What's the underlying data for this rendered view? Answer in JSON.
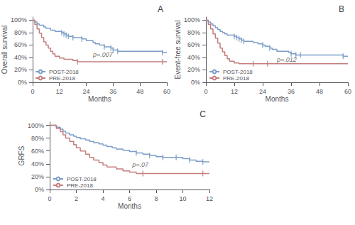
{
  "chart_data": [
    {
      "type": "step",
      "title": "A",
      "xlabel": "Months",
      "ylabel": "Overall survival",
      "xlim": [
        0,
        60
      ],
      "xticks": [
        0,
        12,
        24,
        36,
        48,
        60
      ],
      "ylim": [
        0,
        1.05
      ],
      "yticks": [
        {
          "value": 0.0,
          "label": "0%"
        },
        {
          "value": 0.2,
          "label": "20%"
        },
        {
          "value": 0.4,
          "label": "40%"
        },
        {
          "value": 0.6,
          "label": "60%"
        },
        {
          "value": 0.8,
          "label": "80%"
        },
        {
          "value": 1.0,
          "label": "100%"
        }
      ],
      "grid": false,
      "legend": "lower left",
      "annotations": [
        {
          "text": "p=.007",
          "x": 27,
          "y": 0.44
        }
      ],
      "series": [
        {
          "name": "POST-2018",
          "color": "#7B9EC8",
          "x": [
            0,
            1,
            2,
            3,
            5,
            6,
            8,
            10,
            13,
            14,
            15,
            16,
            18,
            22,
            24,
            27,
            28,
            30,
            32,
            35,
            36,
            38,
            40,
            58,
            60
          ],
          "values": [
            1.0,
            0.97,
            0.94,
            0.92,
            0.89,
            0.87,
            0.84,
            0.82,
            0.8,
            0.78,
            0.76,
            0.74,
            0.72,
            0.7,
            0.67,
            0.64,
            0.62,
            0.6,
            0.57,
            0.55,
            0.52,
            0.5,
            0.5,
            0.48,
            0.48
          ],
          "censor_x": [
            13,
            14,
            15,
            16,
            18,
            22,
            32,
            35,
            36,
            38,
            58
          ],
          "censor_y": [
            0.8,
            0.78,
            0.76,
            0.74,
            0.72,
            0.7,
            0.57,
            0.55,
            0.52,
            0.5,
            0.48
          ]
        },
        {
          "name": "PRE-2018",
          "color": "#C47E7E",
          "x": [
            0,
            1,
            2,
            3,
            4,
            5,
            6,
            7,
            8,
            9,
            10,
            12,
            14,
            18,
            20,
            26,
            60
          ],
          "values": [
            1.0,
            0.93,
            0.86,
            0.79,
            0.72,
            0.65,
            0.6,
            0.55,
            0.5,
            0.46,
            0.42,
            0.39,
            0.37,
            0.35,
            0.33,
            0.33,
            0.33
          ],
          "censor_x": [
            20,
            58
          ],
          "censor_y": [
            0.33,
            0.33
          ]
        }
      ]
    },
    {
      "type": "step",
      "title": "B",
      "xlabel": "Months",
      "ylabel": "Event-free survival",
      "xlim": [
        0,
        60
      ],
      "xticks": [
        0,
        12,
        24,
        36,
        48,
        60
      ],
      "ylim": [
        0,
        1.05
      ],
      "yticks": [
        {
          "value": 0.0,
          "label": "0%"
        },
        {
          "value": 0.2,
          "label": "20%"
        },
        {
          "value": 0.4,
          "label": "40%"
        },
        {
          "value": 0.6,
          "label": "60%"
        },
        {
          "value": 0.8,
          "label": "80%"
        },
        {
          "value": 1.0,
          "label": "100%"
        }
      ],
      "grid": false,
      "legend": "lower left",
      "annotations": [
        {
          "text": "p=.012",
          "x": 30,
          "y": 0.37
        }
      ],
      "series": [
        {
          "name": "POST-2018",
          "color": "#7B9EC8",
          "x": [
            0,
            1,
            2,
            3,
            4,
            5,
            6,
            7,
            8,
            9,
            12,
            13,
            14,
            15,
            16,
            20,
            22,
            24,
            25,
            27,
            28,
            30,
            35,
            36,
            38,
            40,
            58,
            60
          ],
          "values": [
            1.0,
            0.97,
            0.94,
            0.91,
            0.88,
            0.85,
            0.82,
            0.8,
            0.78,
            0.76,
            0.74,
            0.72,
            0.7,
            0.68,
            0.66,
            0.64,
            0.62,
            0.6,
            0.58,
            0.55,
            0.53,
            0.5,
            0.48,
            0.46,
            0.44,
            0.44,
            0.42,
            0.42
          ],
          "censor_x": [
            12,
            13,
            14,
            15,
            16,
            24,
            27,
            36,
            38,
            40,
            58
          ],
          "censor_y": [
            0.74,
            0.72,
            0.7,
            0.68,
            0.66,
            0.6,
            0.55,
            0.46,
            0.44,
            0.44,
            0.42
          ]
        },
        {
          "name": "PRE-2018",
          "color": "#C47E7E",
          "x": [
            0,
            1,
            2,
            3,
            4,
            5,
            6,
            7,
            8,
            9,
            10,
            12,
            14,
            18,
            20,
            24,
            26,
            60
          ],
          "values": [
            1.0,
            0.93,
            0.86,
            0.78,
            0.71,
            0.63,
            0.55,
            0.49,
            0.43,
            0.38,
            0.34,
            0.31,
            0.3,
            0.3,
            0.3,
            0.3,
            0.3,
            0.3
          ],
          "censor_x": [
            20,
            26
          ],
          "censor_y": [
            0.3,
            0.3
          ]
        }
      ]
    },
    {
      "type": "step",
      "title": "C",
      "xlabel": "Months",
      "ylabel": "GRFS",
      "xlim": [
        0,
        12
      ],
      "xticks": [
        0,
        2,
        4,
        6,
        8,
        10,
        12
      ],
      "ylim": [
        0,
        1.05
      ],
      "yticks": [
        {
          "value": 0.0,
          "label": "0%"
        },
        {
          "value": 0.2,
          "label": "20%"
        },
        {
          "value": 0.4,
          "label": "40%"
        },
        {
          "value": 0.6,
          "label": "60%"
        },
        {
          "value": 0.8,
          "label": "80%"
        },
        {
          "value": 1.0,
          "label": "100%"
        }
      ],
      "grid": false,
      "legend": "lower left",
      "annotations": [
        {
          "text": "p=.07",
          "x": 6.2,
          "y": 0.39
        }
      ],
      "series": [
        {
          "name": "POST-2018",
          "color": "#7B9EC8",
          "x": [
            0,
            0.5,
            0.8,
            1.0,
            1.2,
            1.5,
            1.8,
            2.0,
            2.3,
            2.7,
            3.0,
            3.3,
            3.7,
            4.0,
            4.3,
            4.7,
            5.0,
            5.5,
            6.0,
            6.5,
            7.0,
            7.5,
            8.0,
            8.5,
            9.0,
            9.5,
            10.0,
            10.5,
            11.0,
            11.5,
            12.0
          ],
          "values": [
            1.0,
            0.97,
            0.94,
            0.91,
            0.88,
            0.85,
            0.83,
            0.81,
            0.79,
            0.77,
            0.75,
            0.73,
            0.71,
            0.69,
            0.67,
            0.65,
            0.63,
            0.61,
            0.59,
            0.57,
            0.55,
            0.53,
            0.51,
            0.5,
            0.5,
            0.5,
            0.48,
            0.46,
            0.44,
            0.43,
            0.43
          ],
          "censor_x": [
            6.5,
            7.5,
            8.5,
            9.5,
            10.5,
            11.5
          ],
          "censor_y": [
            0.57,
            0.53,
            0.5,
            0.5,
            0.46,
            0.43
          ]
        },
        {
          "name": "PRE-2018",
          "color": "#C47E7E",
          "x": [
            0,
            0.5,
            0.8,
            1.0,
            1.2,
            1.5,
            1.8,
            2.0,
            2.3,
            2.7,
            3.0,
            3.3,
            3.7,
            4.0,
            4.3,
            5.0,
            5.5,
            6.0,
            6.5,
            7.0,
            11.5,
            12.0
          ],
          "values": [
            1.0,
            0.95,
            0.9,
            0.85,
            0.8,
            0.75,
            0.7,
            0.65,
            0.6,
            0.55,
            0.5,
            0.46,
            0.42,
            0.38,
            0.35,
            0.32,
            0.29,
            0.27,
            0.25,
            0.25,
            0.25,
            0.25
          ],
          "censor_x": [
            7.0,
            11.5
          ],
          "censor_y": [
            0.25,
            0.25
          ]
        }
      ]
    }
  ]
}
